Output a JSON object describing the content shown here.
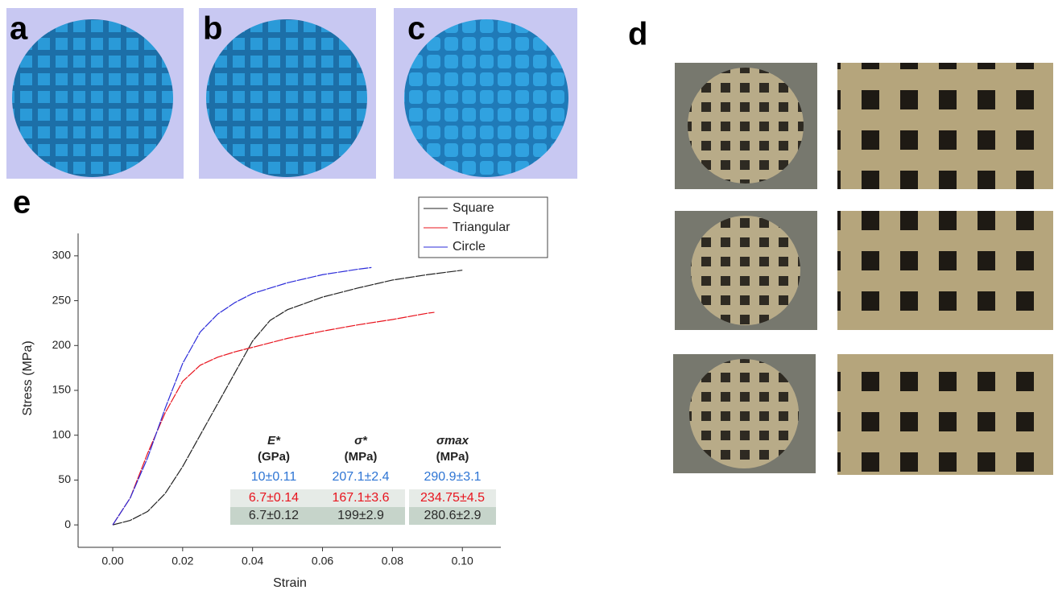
{
  "panels": [
    "a",
    "b",
    "c",
    "d",
    "e"
  ],
  "chart_data": {
    "type": "line",
    "xlabel": "Strain",
    "ylabel": "Stress (MPa)",
    "xlim": [
      -0.0099,
      0.111
    ],
    "ylim": [
      -25,
      325
    ],
    "xticks": [
      {
        "value": 0,
        "label": "0.00"
      },
      {
        "value": 0.02,
        "label": "0.02"
      },
      {
        "value": 0.04,
        "label": "0.04"
      },
      {
        "value": 0.06,
        "label": "0.06"
      },
      {
        "value": 0.08,
        "label": "0.08"
      },
      {
        "value": 0.1,
        "label": "0.10"
      }
    ],
    "yticks": [
      0,
      50,
      100,
      150,
      200,
      250,
      300
    ],
    "legend": "top right",
    "grid": false,
    "series": [
      {
        "name": "Square",
        "color": "#222222",
        "x": [
          0,
          0.005,
          0.01,
          0.015,
          0.02,
          0.025,
          0.03,
          0.035,
          0.04,
          0.045,
          0.05,
          0.06,
          0.07,
          0.08,
          0.09,
          0.1
        ],
        "values": [
          0,
          5,
          15,
          35,
          65,
          100,
          135,
          170,
          205,
          228,
          240,
          254,
          264,
          273,
          279,
          284
        ]
      },
      {
        "name": "Triangular",
        "color": "#e8141e",
        "x": [
          0,
          0.005,
          0.01,
          0.015,
          0.02,
          0.025,
          0.03,
          0.035,
          0.04,
          0.05,
          0.06,
          0.07,
          0.08,
          0.09,
          0.092
        ],
        "values": [
          0,
          30,
          80,
          125,
          160,
          178,
          187,
          193,
          198,
          208,
          216,
          223,
          229,
          236,
          237
        ]
      },
      {
        "name": "Circle",
        "color": "#2b2bd9",
        "x": [
          0,
          0.005,
          0.01,
          0.015,
          0.02,
          0.025,
          0.03,
          0.035,
          0.04,
          0.05,
          0.06,
          0.07,
          0.074
        ],
        "values": [
          0,
          30,
          75,
          130,
          180,
          215,
          235,
          248,
          258,
          270,
          279,
          285,
          287
        ]
      }
    ]
  },
  "table": {
    "headers": [
      [
        "E*",
        "(GPa)"
      ],
      [
        "σ*",
        "(MPa)"
      ],
      [
        "σmax",
        "(MPa)"
      ]
    ],
    "rows": [
      {
        "color": "#2e75d4",
        "background": "#ffffff",
        "cells": [
          "10±0.11",
          "207.1±2.4",
          "290.9±3.1"
        ]
      },
      {
        "color": "#e8141e",
        "background": "#e6ebe7",
        "cells": [
          "6.7±0.14",
          "167.1±3.6",
          "234.75±4.5"
        ]
      },
      {
        "color": "#2a2a2a",
        "background": "#c6d4ca",
        "cells": [
          "6.7±0.12",
          "199±2.9",
          "280.6±2.9"
        ]
      }
    ]
  }
}
